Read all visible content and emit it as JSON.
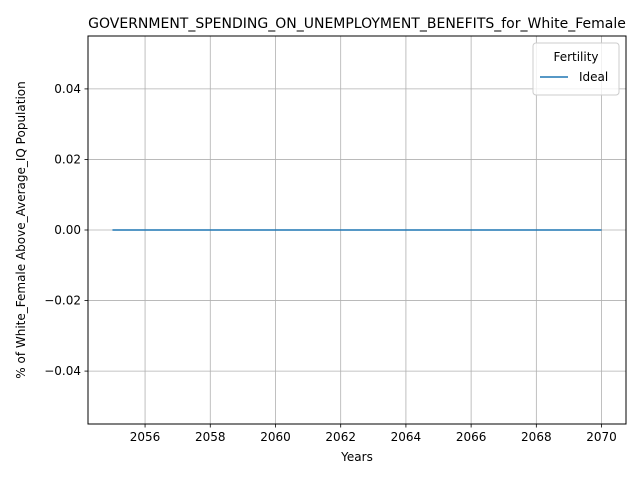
{
  "chart_data": {
    "type": "line",
    "title": "GOVERNMENT_SPENDING_ON_UNEMPLOYMENT_BENEFITS_for_White_Female",
    "xlabel": "Years",
    "ylabel": "% of White_Female Above_Average_IQ Population",
    "xlim": [
      2054.25,
      2070.75
    ],
    "ylim": [
      -0.055,
      0.055
    ],
    "xticks": [
      2056,
      2058,
      2060,
      2062,
      2064,
      2066,
      2068,
      2070
    ],
    "yticks": [
      -0.04,
      -0.02,
      0.0,
      0.02,
      0.04
    ],
    "ytick_labels": [
      "−0.04",
      "−0.02",
      "0.00",
      "0.02",
      "0.04"
    ],
    "grid": true,
    "legend": {
      "title": "Fertility",
      "placement": "top-right"
    },
    "series": [
      {
        "name": "Ideal",
        "color": "#1f77b4",
        "x": [
          2055,
          2056,
          2057,
          2058,
          2059,
          2060,
          2061,
          2062,
          2063,
          2064,
          2065,
          2066,
          2067,
          2068,
          2069,
          2070
        ],
        "y": [
          0,
          0,
          0,
          0,
          0,
          0,
          0,
          0,
          0,
          0,
          0,
          0,
          0,
          0,
          0,
          0
        ]
      }
    ]
  }
}
